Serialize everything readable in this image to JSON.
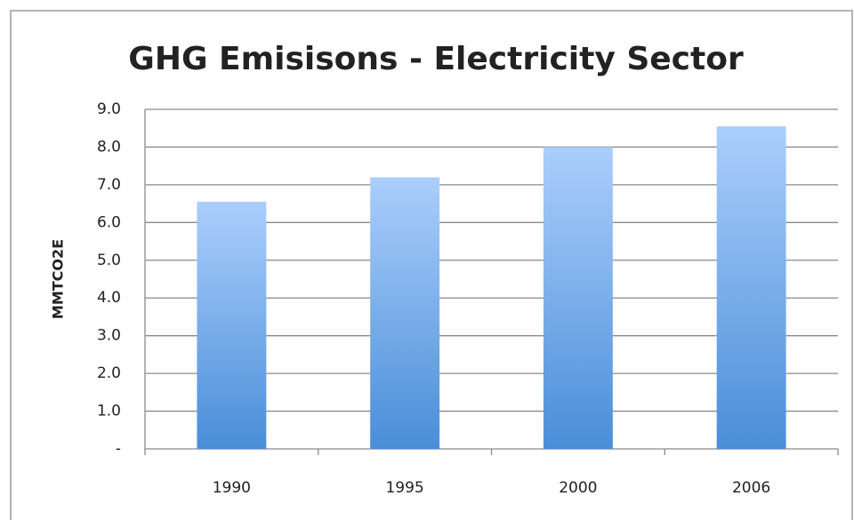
{
  "chart_data": {
    "type": "bar",
    "title": "GHG Emisisons - Electricity Sector",
    "y_label": "MMTCO2E",
    "categories": [
      "1990",
      "1995",
      "2000",
      "2006"
    ],
    "values": [
      6.55,
      7.2,
      8.0,
      8.55
    ],
    "color": "#4a8ed8",
    "gradient_color": "#abcefc",
    "ylim": [
      0,
      9
    ],
    "yticks": [
      {
        "value": 0,
        "label": "-"
      },
      {
        "value": 1,
        "label": "1.0"
      },
      {
        "value": 2,
        "label": "2.0"
      },
      {
        "value": 3,
        "label": "3.0"
      },
      {
        "value": 4,
        "label": "4.0"
      },
      {
        "value": 5,
        "label": "5.0"
      },
      {
        "value": 6,
        "label": "6.0"
      },
      {
        "value": 7,
        "label": "7.0"
      },
      {
        "value": 8,
        "label": "8.0"
      },
      {
        "value": 9,
        "label": "9.0"
      }
    ],
    "grid": true
  }
}
